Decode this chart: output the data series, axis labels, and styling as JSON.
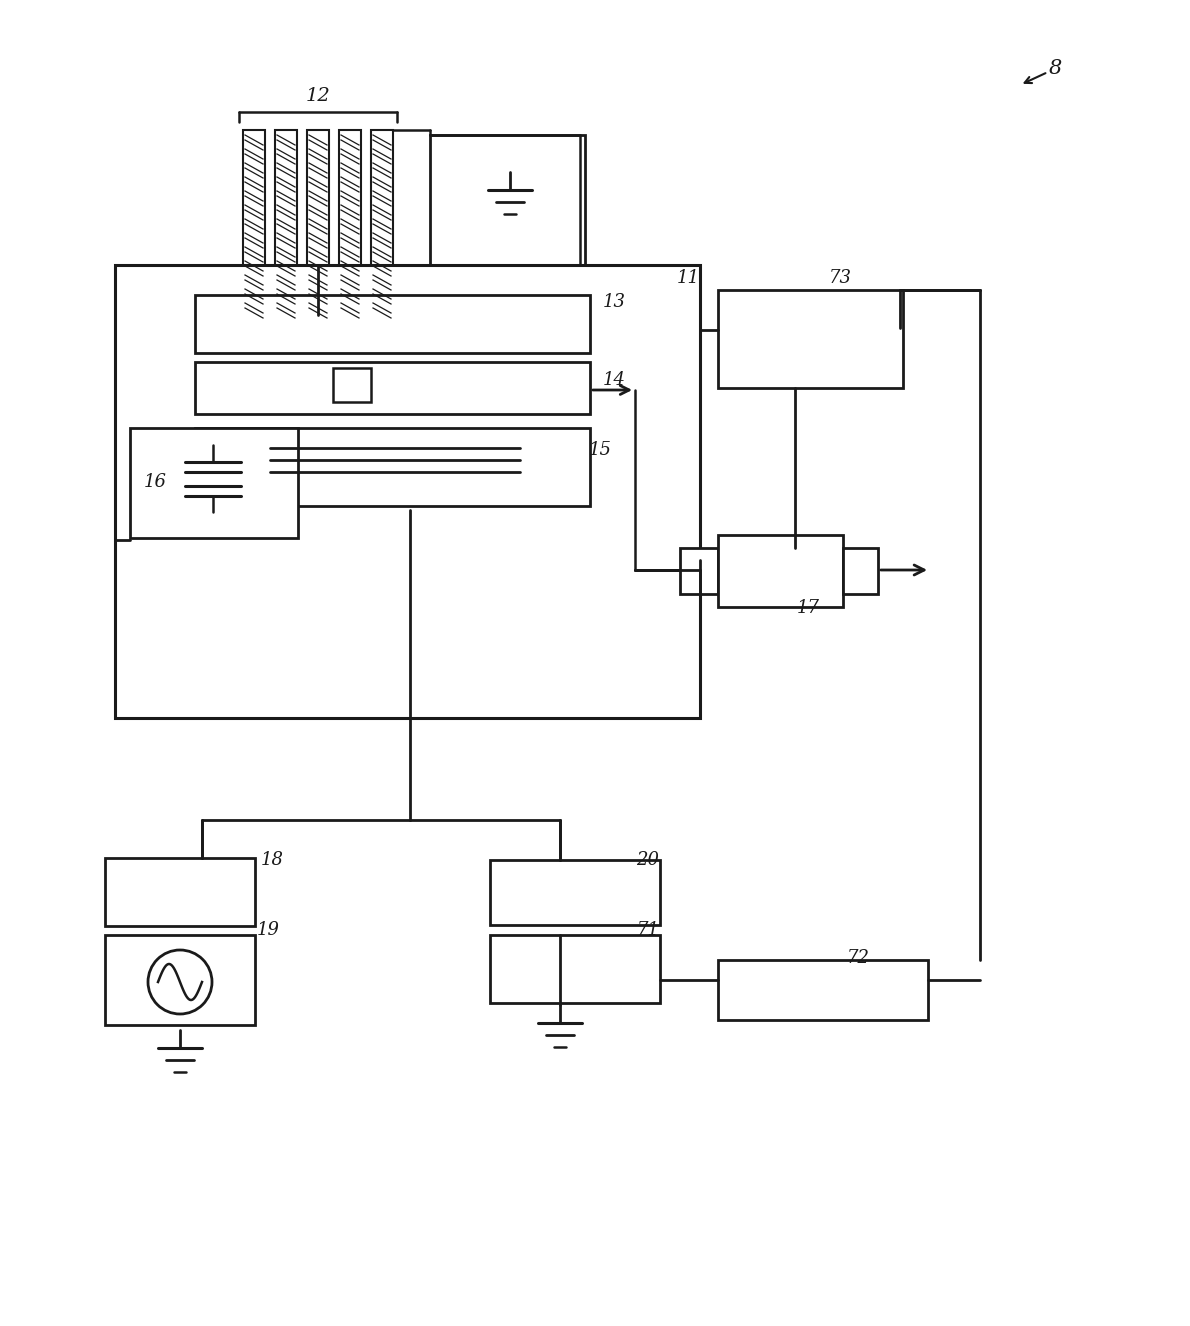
{
  "bg_color": "#ffffff",
  "lc": "#1a1a1a",
  "fig_width": 11.9,
  "fig_height": 13.26,
  "dpi": 100
}
